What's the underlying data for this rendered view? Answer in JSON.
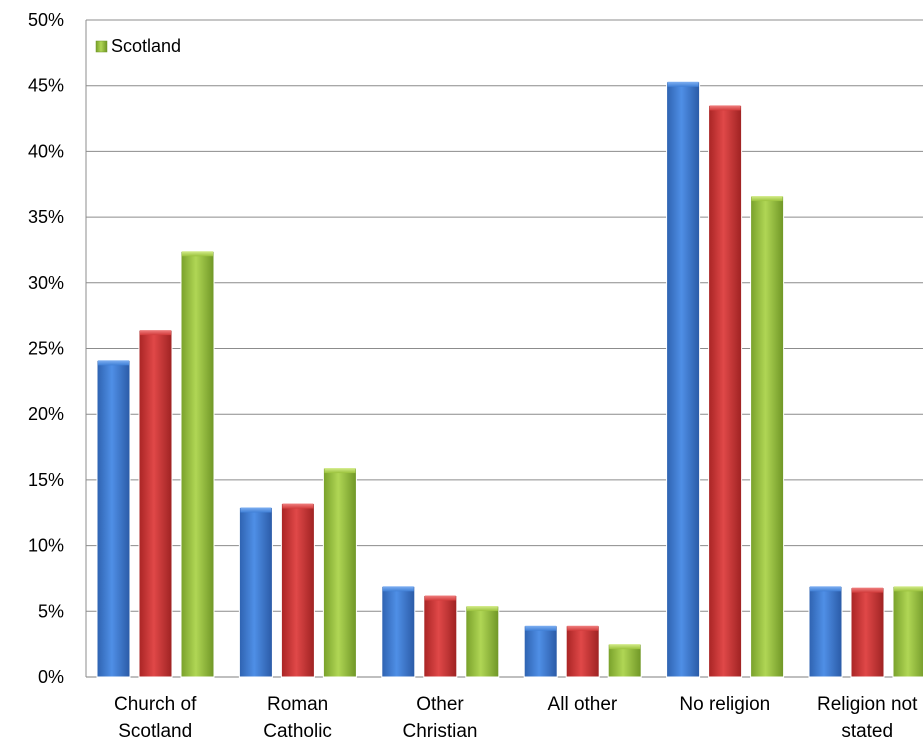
{
  "chart_data": {
    "type": "bar",
    "categories": [
      [
        "Church of",
        "Scotland"
      ],
      [
        "Roman",
        "Catholic"
      ],
      [
        "Other",
        "Christian"
      ],
      [
        "All other"
      ],
      [
        "No religion"
      ],
      [
        "Religion not",
        "stated"
      ]
    ],
    "series": [
      {
        "values": [
          24.1,
          12.9,
          6.9,
          3.9,
          45.3,
          6.9
        ],
        "color": "#3f7fd6"
      },
      {
        "values": [
          26.4,
          13.2,
          6.2,
          3.9,
          43.5,
          6.8
        ],
        "color": "#d13a3a"
      },
      {
        "name": "Scotland",
        "values": [
          32.4,
          15.9,
          5.4,
          2.5,
          36.6,
          6.9
        ],
        "color": "#9ac23c"
      }
    ],
    "ylim": [
      0,
      50
    ],
    "yticks": [
      "0%",
      "5%",
      "10%",
      "15%",
      "20%",
      "25%",
      "30%",
      "35%",
      "40%",
      "45%",
      "50%"
    ],
    "grid": true,
    "legend": {
      "position": "top-left",
      "entries": [
        "Scotland"
      ]
    }
  }
}
